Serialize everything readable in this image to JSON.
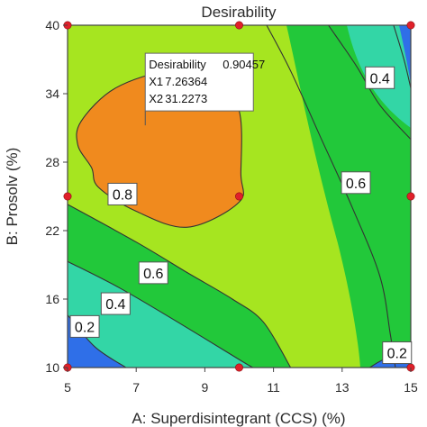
{
  "chart_data": {
    "type": "contour",
    "title": "Desirability",
    "xlabel": "A: Superdisintegrant (CCS) (%)",
    "ylabel": "B: Prosolv  (%)",
    "xlim": [
      5,
      15
    ],
    "ylim": [
      10,
      40
    ],
    "xticks": [
      5,
      7,
      9,
      11,
      13,
      15
    ],
    "yticks": [
      10,
      16,
      22,
      28,
      34,
      40
    ],
    "legend": "none",
    "grid": false,
    "regions": [
      {
        "level": "0-0.2",
        "color": "#2f6fe8"
      },
      {
        "level": "0.2-0.4",
        "color": "#33d6a6"
      },
      {
        "level": "0.4-0.6",
        "color": "#22c83a"
      },
      {
        "level": "0.6-0.8",
        "color": "#a6e520"
      },
      {
        "level": "0.8-1.0",
        "color": "#f08a1e"
      }
    ],
    "contours": [
      {
        "level": 0.2,
        "points": [
          [
            5,
            14.6
          ],
          [
            5.8,
            11.8
          ],
          [
            6.7,
            10
          ]
        ]
      },
      {
        "level": 0.2,
        "points": [
          [
            13.8,
            10
          ],
          [
            14.3,
            10.8
          ],
          [
            15,
            11
          ]
        ]
      },
      {
        "level": 0.2,
        "points": [
          [
            14.5,
            40
          ],
          [
            14.8,
            37
          ],
          [
            15,
            34.5
          ]
        ]
      },
      {
        "level": 0.4,
        "points": [
          [
            5,
            19.3
          ],
          [
            6.5,
            17
          ],
          [
            8.2,
            14
          ],
          [
            10,
            10.7
          ],
          [
            10.4,
            10
          ]
        ]
      },
      {
        "level": 0.4,
        "points": [
          [
            12.6,
            40
          ],
          [
            13.4,
            36.5
          ],
          [
            14.1,
            33
          ],
          [
            15,
            30
          ]
        ]
      },
      {
        "level": 0.6,
        "points": [
          [
            5,
            24.3
          ],
          [
            7,
            21
          ],
          [
            8.5,
            18.3
          ],
          [
            9.8,
            16
          ],
          [
            10.7,
            14
          ],
          [
            11.5,
            10
          ]
        ]
      },
      {
        "level": 0.6,
        "points": [
          [
            10.8,
            40
          ],
          [
            11.5,
            36
          ],
          [
            12.4,
            30
          ],
          [
            13.3,
            24
          ],
          [
            14.1,
            18
          ],
          [
            14.4,
            13
          ],
          [
            14.55,
            10
          ]
        ]
      },
      {
        "level": 0.8,
        "points": [
          [
            5.7,
            27.5
          ],
          [
            5.3,
            29.5
          ],
          [
            5.4,
            31.6
          ],
          [
            6.4,
            34.5
          ],
          [
            8,
            36
          ],
          [
            9.3,
            35.2
          ],
          [
            10,
            32.5
          ],
          [
            10.05,
            27
          ],
          [
            10,
            24.5
          ],
          [
            8.5,
            22.3
          ],
          [
            7,
            23.7
          ],
          [
            5.9,
            25.8
          ],
          [
            5.7,
            27.5
          ]
        ]
      }
    ],
    "contour_labels": [
      {
        "text": "0.2",
        "x": 5.5,
        "y": 13.6
      },
      {
        "text": "0.4",
        "x": 6.4,
        "y": 15.6
      },
      {
        "text": "0.6",
        "x": 7.5,
        "y": 18.3
      },
      {
        "text": "0.8",
        "x": 6.6,
        "y": 25.2
      },
      {
        "text": "0.6",
        "x": 13.4,
        "y": 26.2
      },
      {
        "text": "0.4",
        "x": 14.1,
        "y": 35.4
      },
      {
        "text": "0.2",
        "x": 14.6,
        "y": 11.3
      }
    ],
    "design_points": [
      {
        "x": 5,
        "y": 40
      },
      {
        "x": 10,
        "y": 40
      },
      {
        "x": 15,
        "y": 40
      },
      {
        "x": 5,
        "y": 25
      },
      {
        "x": 10,
        "y": 25
      },
      {
        "x": 15,
        "y": 25
      },
      {
        "x": 5,
        "y": 10
      },
      {
        "x": 10,
        "y": 10
      },
      {
        "x": 15,
        "y": 10
      }
    ],
    "flag": {
      "x": 7.26364,
      "y": 31.2273,
      "lines": [
        {
          "label": "Desirability",
          "value": "0.90457"
        },
        {
          "label": "X1",
          "value": "7.26364"
        },
        {
          "label": "X2",
          "value": "31.2273"
        }
      ]
    }
  }
}
